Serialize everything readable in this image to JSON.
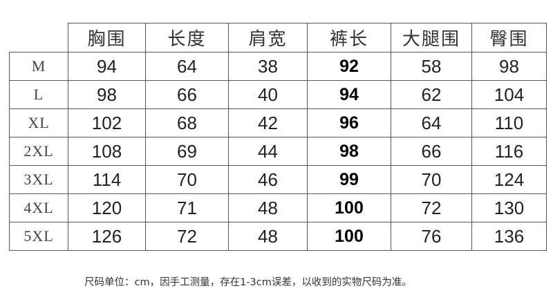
{
  "table": {
    "headers": [
      "",
      "胸围",
      "长度",
      "肩宽",
      "裤长",
      "大腿围",
      "臀围"
    ],
    "rows": [
      [
        "M",
        "94",
        "64",
        "38",
        "92",
        "58",
        "98"
      ],
      [
        "L",
        "98",
        "66",
        "40",
        "94",
        "62",
        "104"
      ],
      [
        "XL",
        "102",
        "68",
        "42",
        "96",
        "64",
        "110"
      ],
      [
        "2XL",
        "108",
        "69",
        "44",
        "98",
        "66",
        "116"
      ],
      [
        "3XL",
        "114",
        "70",
        "46",
        "99",
        "70",
        "124"
      ],
      [
        "4XL",
        "120",
        "71",
        "48",
        "100",
        "72",
        "130"
      ],
      [
        "5XL",
        "126",
        "72",
        "48",
        "100",
        "76",
        "136"
      ]
    ]
  },
  "note": "尺码单位：cm，因手工测量，存在1-3cm误差，以收到的实物尺码为准。"
}
